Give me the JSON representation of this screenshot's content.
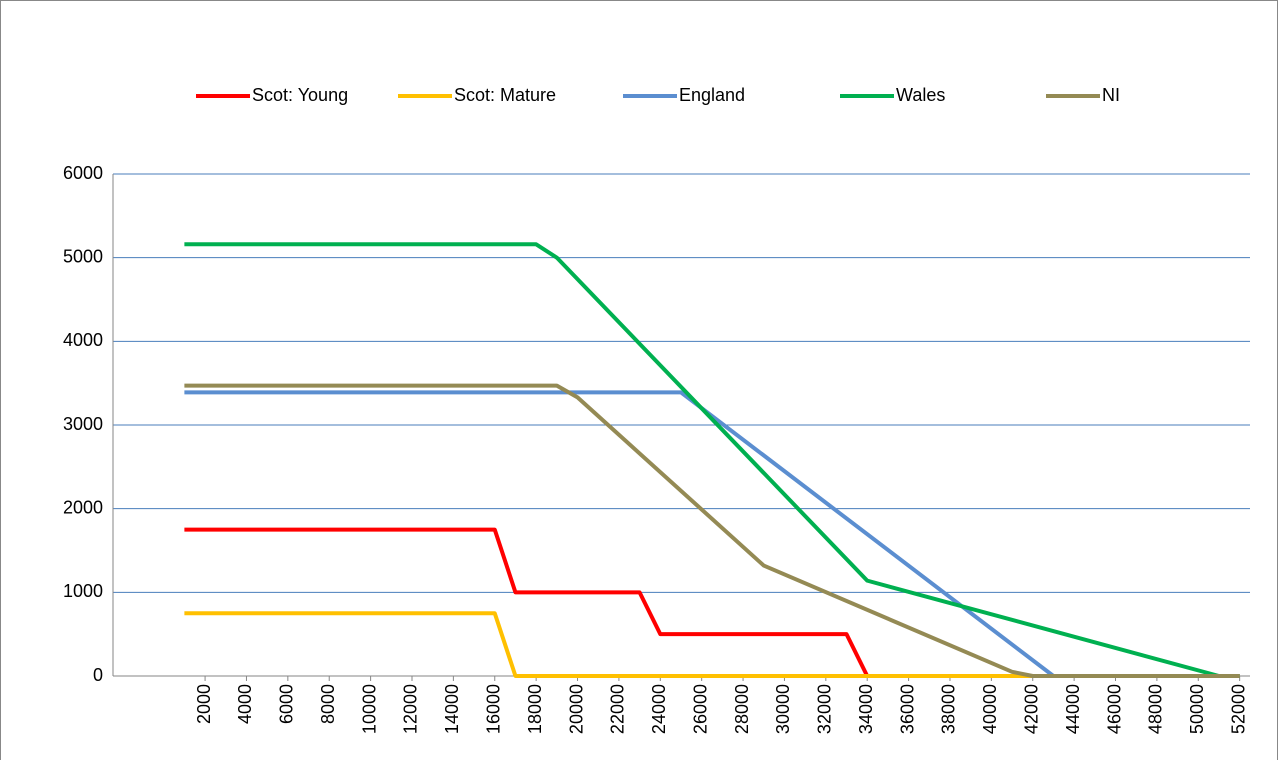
{
  "chart_data": {
    "type": "line",
    "series": [
      {
        "name": "Scot: Young",
        "color": "#ff0000",
        "x": [
          1000,
          16000,
          17000,
          23000,
          24000,
          33000,
          34000,
          52000
        ],
        "values": [
          1750,
          1750,
          1000,
          1000,
          500,
          500,
          0,
          0
        ]
      },
      {
        "name": "Scot: Mature",
        "color": "#ffc000",
        "x": [
          1000,
          16000,
          17000,
          52000
        ],
        "values": [
          750,
          750,
          0,
          0
        ]
      },
      {
        "name": "England",
        "color": "#5b8ed0",
        "x": [
          1000,
          25000,
          43000,
          52000
        ],
        "values": [
          3390,
          3390,
          0,
          0
        ]
      },
      {
        "name": "Wales",
        "color": "#00b050",
        "x": [
          1000,
          18000,
          19000,
          34000,
          51000,
          52000
        ],
        "values": [
          5160,
          5160,
          5000,
          1140,
          0,
          0
        ]
      },
      {
        "name": "NI",
        "color": "#948a54",
        "x": [
          1000,
          19000,
          20000,
          29000,
          41000,
          42000,
          52000
        ],
        "values": [
          3470,
          3470,
          3330,
          1320,
          50,
          0,
          0
        ]
      }
    ],
    "xlim": [
      -2450,
      52500
    ],
    "xticks": [
      2000,
      4000,
      6000,
      8000,
      10000,
      12000,
      14000,
      16000,
      18000,
      20000,
      22000,
      24000,
      26000,
      28000,
      30000,
      32000,
      34000,
      36000,
      38000,
      40000,
      42000,
      44000,
      46000,
      48000,
      50000,
      52000
    ],
    "ylim": [
      0,
      6000
    ],
    "yticks": [
      0,
      1000,
      2000,
      3000,
      4000,
      5000,
      6000
    ],
    "grid": true,
    "legend": "top"
  }
}
